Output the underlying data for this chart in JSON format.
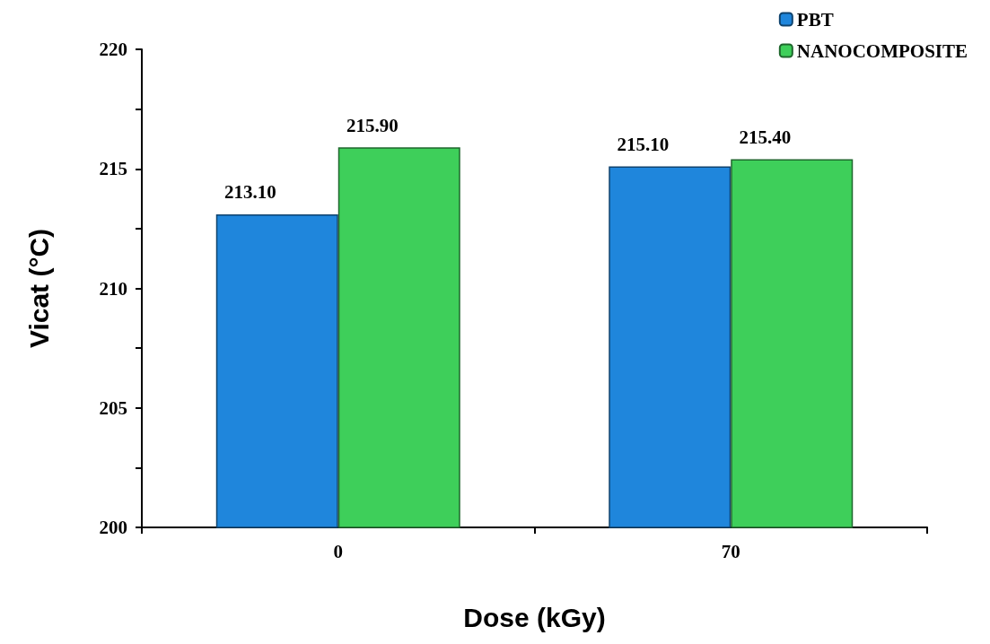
{
  "chart_data": {
    "type": "bar",
    "xlabel": "Dose (kGy)",
    "ylabel": "Vicat (°C)",
    "categories": [
      "0",
      "70"
    ],
    "series": [
      {
        "name": "PBT",
        "color": "#1f86dc",
        "values": [
          213.1,
          215.1
        ],
        "value_labels": [
          "213.10",
          "215.10"
        ]
      },
      {
        "name": "NANOCOMPOSITE",
        "color": "#3ecf5a",
        "values": [
          215.9,
          215.4
        ],
        "value_labels": [
          "215.90",
          "215.40"
        ]
      }
    ],
    "ylim": [
      200,
      220
    ],
    "yticks": [
      200,
      {
        "value": 202.5,
        "label": null
      },
      205,
      {
        "value": 207.5,
        "label": null
      },
      210,
      {
        "value": 212.5,
        "label": null
      },
      215,
      {
        "value": 217.5,
        "label": null
      },
      220
    ],
    "grid": false,
    "legend": "top right"
  }
}
